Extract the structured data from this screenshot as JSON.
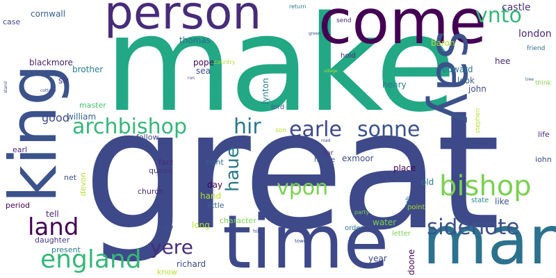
{
  "colors": {
    "background": "#ffffff",
    "palette": [
      "#440154",
      "#482878",
      "#3e4989",
      "#31688e",
      "#26828e",
      "#1f9e89",
      "#35b779",
      "#6ece58",
      "#b5de2b",
      "#fde725"
    ]
  },
  "words": [
    {
      "text": "great",
      "color": "#3e4989"
    },
    {
      "text": "make",
      "color": "#22a884"
    },
    {
      "text": "come",
      "color": "#440154"
    },
    {
      "text": "person",
      "color": "#472c7a"
    },
    {
      "text": "king",
      "color": "#3b528b"
    },
    {
      "text": "say",
      "color": "#3b528b"
    },
    {
      "text": "time",
      "color": "#3e4989"
    },
    {
      "text": "man",
      "color": "#2c728e"
    },
    {
      "text": "vnto",
      "color": "#35b779"
    },
    {
      "text": "bishop",
      "color": "#7ad151"
    },
    {
      "text": "sidenote",
      "color": "#3b528b"
    },
    {
      "text": "england",
      "color": "#35b779"
    },
    {
      "text": "land",
      "color": "#440154"
    },
    {
      "text": "archbishop",
      "color": "#35b779"
    },
    {
      "text": "earle",
      "color": "#3e4989"
    },
    {
      "text": "sonne",
      "color": "#3b528b"
    },
    {
      "text": "hir",
      "color": "#2a788e"
    },
    {
      "text": "vpon",
      "color": "#7ad151"
    },
    {
      "text": "haue",
      "color": "#2a788e"
    },
    {
      "text": "yere",
      "color": "#472c7a"
    },
    {
      "text": "castle",
      "color": "#46327e"
    },
    {
      "text": "london",
      "color": "#482878"
    },
    {
      "text": "cornwall",
      "color": "#355f8d"
    },
    {
      "text": "case",
      "color": "#3e4989"
    },
    {
      "text": "thomas",
      "color": "#31688e"
    },
    {
      "text": "baron",
      "color": "#b5de2b"
    },
    {
      "text": "friend",
      "color": "#31688e"
    },
    {
      "text": "hold",
      "color": "#482878"
    },
    {
      "text": "blackmore",
      "color": "#481f70"
    },
    {
      "text": "brother",
      "color": "#287c8e"
    },
    {
      "text": "pope",
      "color": "#440154"
    },
    {
      "text": "sea",
      "color": "#3e4989"
    },
    {
      "text": "country",
      "color": "#b5de2b"
    },
    {
      "text": "lynton",
      "color": "#2a788e"
    },
    {
      "text": "edward",
      "color": "#2a788e"
    },
    {
      "text": "hee",
      "color": "#482878"
    },
    {
      "text": "sir",
      "color": "#443983"
    },
    {
      "text": "look",
      "color": "#355f8d"
    },
    {
      "text": "henry",
      "color": "#2a788e"
    },
    {
      "text": "master",
      "color": "#48c16e"
    },
    {
      "text": "john",
      "color": "#3e4989"
    },
    {
      "text": "think",
      "color": "#86d549"
    },
    {
      "text": "good",
      "color": "#3e4989"
    },
    {
      "text": "william",
      "color": "#33638d"
    },
    {
      "text": "lord",
      "color": "#3b528b"
    },
    {
      "text": "stephen",
      "color": "#b5de2b"
    },
    {
      "text": "follow",
      "color": "#3e4989"
    },
    {
      "text": "son",
      "color": "#b5de2b"
    },
    {
      "text": "life",
      "color": "#482878"
    },
    {
      "text": "earl",
      "color": "#482878"
    },
    {
      "text": "fact",
      "color": "#482878"
    },
    {
      "text": "right",
      "color": "#31688e"
    },
    {
      "text": "far",
      "color": "#46327e"
    },
    {
      "text": "house",
      "color": "#3b528b"
    },
    {
      "text": "exmoor",
      "color": "#3e4989"
    },
    {
      "text": "iohn",
      "color": "#3e4989"
    },
    {
      "text": "queen",
      "color": "#46327e"
    },
    {
      "text": "church",
      "color": "#482878"
    },
    {
      "text": "place",
      "color": "#440154"
    },
    {
      "text": "net",
      "color": "#3b528b"
    },
    {
      "text": "day",
      "color": "#440154"
    },
    {
      "text": "old",
      "color": "#2a788e"
    },
    {
      "text": "devon",
      "color": "#b5de2b"
    },
    {
      "text": "hand",
      "color": "#b5de2b"
    },
    {
      "text": "little",
      "color": "#33638d"
    },
    {
      "text": "like",
      "color": "#3b528b"
    },
    {
      "text": "state",
      "color": "#26828e"
    },
    {
      "text": "period",
      "color": "#440154"
    },
    {
      "text": "tell",
      "color": "#482878"
    },
    {
      "text": "point",
      "color": "#b5de2b"
    },
    {
      "text": "party",
      "color": "#7ad151"
    },
    {
      "text": "high",
      "color": "#31688e"
    },
    {
      "text": "character",
      "color": "#7ad151"
    },
    {
      "text": "long",
      "color": "#b5de2b"
    },
    {
      "text": "rev",
      "color": "#3b528b"
    },
    {
      "text": "water",
      "color": "#7ad151"
    },
    {
      "text": "order",
      "color": "#2a788e"
    },
    {
      "text": "letter",
      "color": "#7ad151"
    },
    {
      "text": "daughter",
      "color": "#443983"
    },
    {
      "text": "present",
      "color": "#287c8e"
    },
    {
      "text": "richard",
      "color": "#3e4989"
    },
    {
      "text": "year",
      "color": "#3e4989"
    },
    {
      "text": "doone",
      "color": "#440154"
    },
    {
      "text": "know",
      "color": "#b5de2b"
    },
    {
      "text": "hill",
      "color": "#3e4989"
    },
    {
      "text": "town",
      "color": "#3e4989"
    },
    {
      "text": "return",
      "color": "#2a788e"
    },
    {
      "text": "send",
      "color": "#482878"
    },
    {
      "text": "green",
      "color": "#3e4989"
    },
    {
      "text": "road",
      "color": "#3e4989"
    },
    {
      "text": "run",
      "color": "#46327e"
    },
    {
      "text": "cottage",
      "color": "#3e4989"
    },
    {
      "text": "stand",
      "color": "#3e4989"
    },
    {
      "text": "tree",
      "color": "#3b528b"
    },
    {
      "text": "village",
      "color": "#b5de2b"
    }
  ]
}
